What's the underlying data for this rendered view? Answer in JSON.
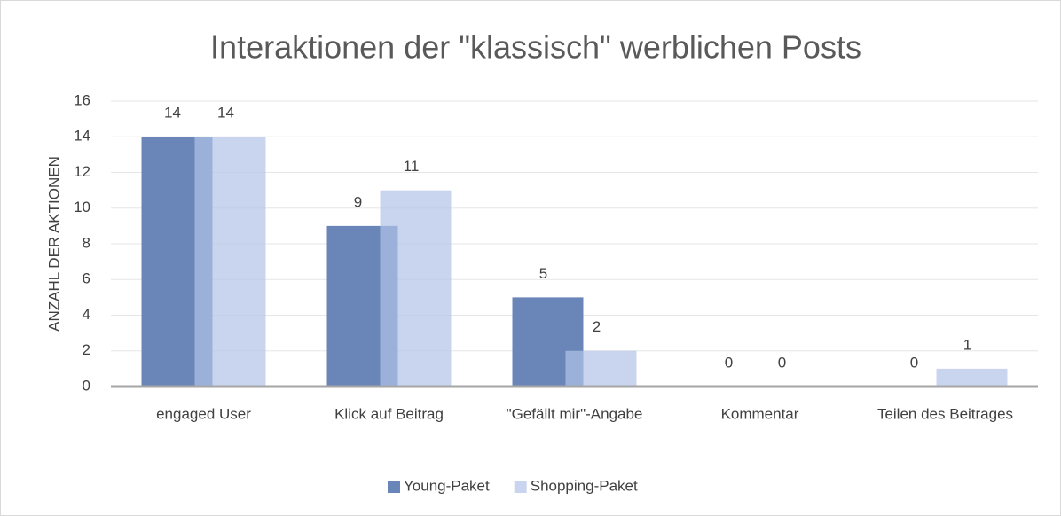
{
  "chart_data": {
    "type": "bar",
    "title": "Interaktionen der \"klassisch\" werblichen Posts",
    "y_label": "ANZAHL DER AKTIONEN",
    "categories": [
      "engaged User",
      "Klick auf Beitrag",
      "\"Gefällt mir\"-Angabe",
      "Kommentar",
      "Teilen des Beitrages"
    ],
    "series": [
      {
        "name": "Young-Paket",
        "color": "#6a86b8",
        "values": [
          14,
          9,
          5,
          0,
          0
        ]
      },
      {
        "name": "Shopping-Paket",
        "color": "#b2c3e7",
        "values": [
          14,
          11,
          2,
          0,
          1
        ]
      }
    ],
    "ylim": [
      0,
      16
    ],
    "yticks": [
      0,
      2,
      4,
      6,
      8,
      10,
      12,
      14,
      16
    ],
    "grid": true,
    "legend": "bottom"
  }
}
